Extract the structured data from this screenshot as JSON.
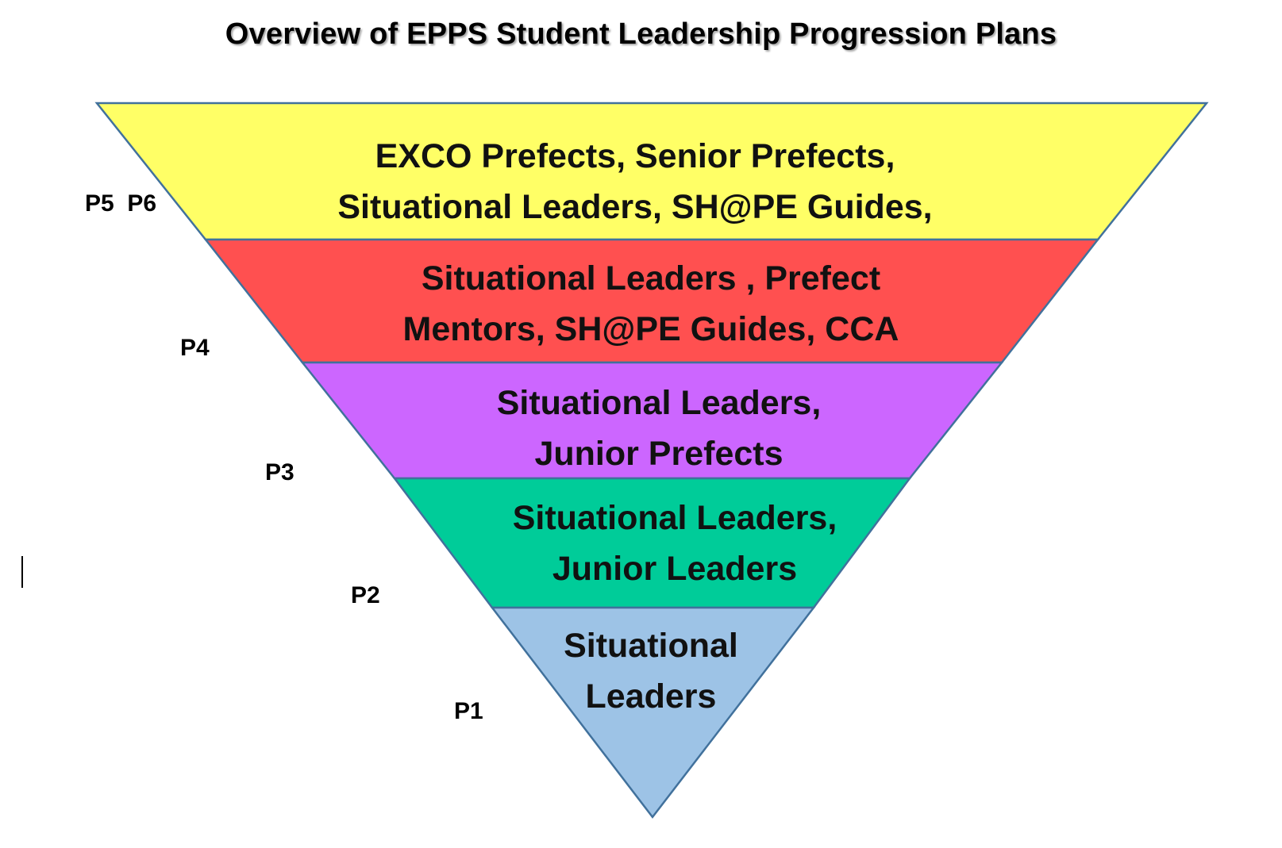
{
  "title": "Overview of EPPS Student Leadership Progression Plans",
  "tiers": [
    {
      "level": "P5  P6",
      "line1": "EXCO Prefects, Senior Prefects,",
      "line2": "Situational  Leaders, SH@PE Guides,",
      "color": "#FFFF66"
    },
    {
      "level": "P4",
      "line1": "Situational  Leaders , Prefect",
      "line2": "Mentors, SH@PE Guides, CCA",
      "color": "#FF5050"
    },
    {
      "level": "P3",
      "line1": "Situational  Leaders,",
      "line2": "Junior Prefects",
      "color": "#CC66FF"
    },
    {
      "level": "P2",
      "line1": "Situational  Leaders,",
      "line2": "Junior Leaders",
      "color": "#00CC99"
    },
    {
      "level": "P1",
      "line1": "Situational",
      "line2": "Leaders",
      "color": "#9DC3E6"
    }
  ],
  "outline_color": "#41719C"
}
